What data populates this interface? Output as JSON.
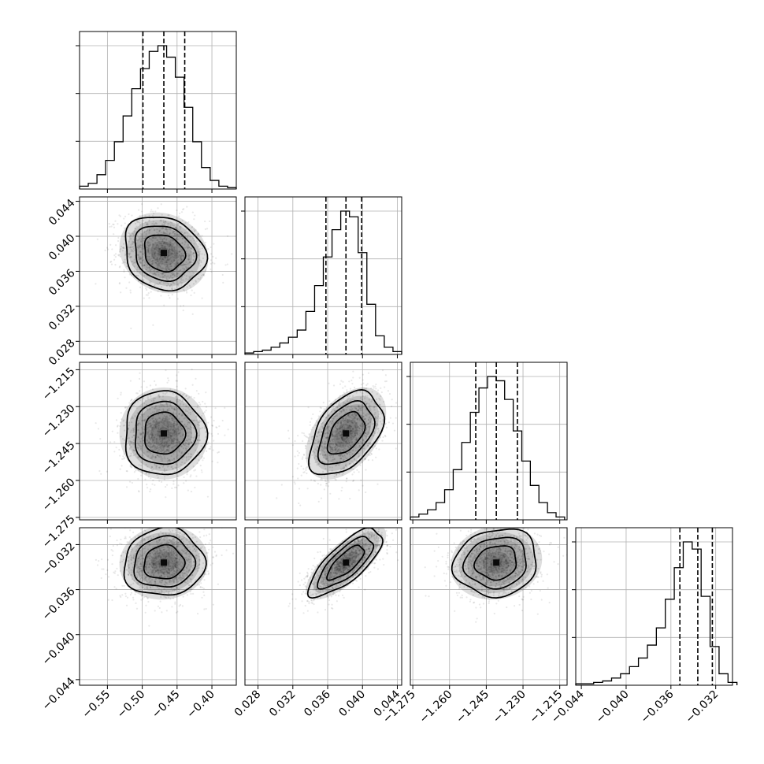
{
  "chart_data": {
    "type": "corner",
    "title": "",
    "colors": {
      "line": "#000000",
      "grid": "#b0b0b0",
      "density": "#000000",
      "background": "#ffffff"
    },
    "grid": true,
    "parameters": [
      {
        "range": [
          -0.59,
          -0.365
        ],
        "ticks": [
          -0.55,
          -0.5,
          -0.45,
          -0.4
        ],
        "tick_labels": [
          "−0.55",
          "−0.50",
          "−0.45",
          "−0.40"
        ],
        "quantiles": [
          -0.499,
          -0.469,
          -0.439
        ],
        "center": -0.469,
        "sigma": 0.029,
        "histogram": {
          "edges": [
            -0.59,
            -0.5775,
            -0.565,
            -0.5525,
            -0.54,
            -0.5275,
            -0.515,
            -0.5025,
            -0.49,
            -0.4775,
            -0.465,
            -0.4525,
            -0.44,
            -0.4275,
            -0.415,
            -0.4025,
            -0.39,
            -0.3775,
            -0.365
          ],
          "counts": [
            2,
            4,
            10,
            20,
            33,
            51,
            70,
            84,
            96,
            100,
            92,
            78,
            57,
            33,
            15,
            6,
            2,
            1
          ]
        }
      },
      {
        "range": [
          0.0265,
          0.0445
        ],
        "ticks": [
          0.028,
          0.032,
          0.036,
          0.04,
          0.044
        ],
        "tick_labels": [
          "0.028",
          "0.032",
          "0.036",
          "0.040",
          "0.044"
        ],
        "quantiles": [
          0.0358,
          0.0381,
          0.0399
        ],
        "center": 0.0381,
        "sigma": 0.0021,
        "histogram": {
          "edges": [
            0.0265,
            0.0275,
            0.0285,
            0.0295,
            0.0305,
            0.0315,
            0.0325,
            0.0335,
            0.0345,
            0.0355,
            0.0365,
            0.0375,
            0.0385,
            0.0395,
            0.0405,
            0.0415,
            0.0425,
            0.0435,
            0.0445
          ],
          "counts": [
            1,
            2,
            3,
            5,
            8,
            12,
            17,
            30,
            48,
            68,
            87,
            100,
            96,
            71,
            35,
            13,
            5,
            2
          ]
        }
      },
      {
        "range": [
          -1.276,
          -1.212
        ],
        "ticks": [
          -1.275,
          -1.26,
          -1.245,
          -1.23,
          -1.215
        ],
        "tick_labels": [
          "−1.275",
          "−1.260",
          "−1.245",
          "−1.230",
          "−1.215"
        ],
        "quantiles": [
          -1.2493,
          -1.2409,
          -1.2323
        ],
        "center": -1.2409,
        "sigma": 0.0085,
        "histogram": {
          "edges": [
            -1.276,
            -1.2725,
            -1.269,
            -1.2655,
            -1.262,
            -1.2585,
            -1.255,
            -1.2515,
            -1.248,
            -1.2445,
            -1.241,
            -1.2375,
            -1.234,
            -1.2305,
            -1.227,
            -1.2235,
            -1.22,
            -1.2165,
            -1.213
          ],
          "counts": [
            2,
            4,
            7,
            12,
            21,
            35,
            54,
            75,
            92,
            100,
            97,
            84,
            62,
            41,
            24,
            12,
            5,
            2
          ]
        }
      },
      {
        "range": [
          -0.0445,
          -0.0305
        ],
        "ticks": [
          -0.044,
          -0.04,
          -0.036,
          -0.032
        ],
        "tick_labels": [
          "−0.044",
          "−0.040",
          "−0.036",
          "−0.032"
        ],
        "quantiles": [
          -0.0352,
          -0.0336,
          -0.0323
        ],
        "center": -0.0336,
        "sigma": 0.0015,
        "histogram": {
          "edges": [
            -0.0445,
            -0.0437,
            -0.0429,
            -0.0421,
            -0.0413,
            -0.0405,
            -0.0397,
            -0.0389,
            -0.0381,
            -0.0373,
            -0.0365,
            -0.0357,
            -0.0349,
            -0.0341,
            -0.0333,
            -0.0325,
            -0.0317,
            -0.0309,
            -0.0301
          ],
          "counts": [
            1,
            1,
            2,
            3,
            5,
            8,
            13,
            19,
            28,
            40,
            60,
            82,
            100,
            95,
            62,
            27,
            8,
            2
          ]
        }
      }
    ],
    "correlations": {
      "1-0": -0.15,
      "2-0": 0.0,
      "2-1": 0.45,
      "3-0": 0.05,
      "3-1": 0.75,
      "3-2": 0.1
    },
    "contour_levels_sigma": [
      1,
      1.5,
      2
    ]
  }
}
